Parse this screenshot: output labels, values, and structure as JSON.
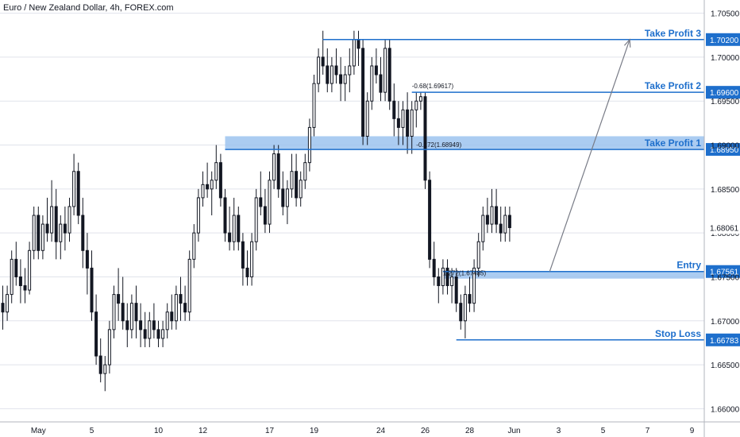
{
  "chart_data": {
    "type": "candlestick",
    "title": "Euro / New Zealand Dollar, 4h, FOREX.com",
    "current_price": "1.68061",
    "ylim": [
      1.6585,
      1.7065
    ],
    "y_ticks": [
      1.705,
      1.7,
      1.695,
      1.69,
      1.685,
      1.68,
      1.675,
      1.67,
      1.665,
      1.66
    ],
    "y_tick_labels": [
      "1.70500",
      "1.70000",
      "1.69500",
      "1.69000",
      "1.68500",
      "1.68000",
      "1.67500",
      "1.67000",
      "1.66500",
      "1.66000"
    ],
    "x_ticks": [
      {
        "label": "May",
        "bar": 8
      },
      {
        "label": "5",
        "bar": 20
      },
      {
        "label": "10",
        "bar": 35
      },
      {
        "label": "12",
        "bar": 45
      },
      {
        "label": "17",
        "bar": 60
      },
      {
        "label": "19",
        "bar": 70
      },
      {
        "label": "24",
        "bar": 85
      },
      {
        "label": "26",
        "bar": 95
      },
      {
        "label": "28",
        "bar": 105
      },
      {
        "label": "Jun",
        "bar": 115
      },
      {
        "label": "3",
        "bar": 125
      },
      {
        "label": "5",
        "bar": 135
      },
      {
        "label": "7",
        "bar": 145
      },
      {
        "label": "9",
        "bar": 155
      }
    ],
    "candles": [
      [
        1.672,
        1.674,
        1.669,
        1.671
      ],
      [
        1.671,
        1.674,
        1.67,
        1.673
      ],
      [
        1.673,
        1.678,
        1.672,
        1.677
      ],
      [
        1.677,
        1.679,
        1.674,
        1.675
      ],
      [
        1.675,
        1.677,
        1.672,
        1.674
      ],
      [
        1.674,
        1.676,
        1.672,
        1.6735
      ],
      [
        1.6735,
        1.679,
        1.673,
        1.678
      ],
      [
        1.678,
        1.683,
        1.677,
        1.682
      ],
      [
        1.682,
        1.683,
        1.677,
        1.678
      ],
      [
        1.678,
        1.682,
        1.677,
        1.681
      ],
      [
        1.681,
        1.684,
        1.679,
        1.68
      ],
      [
        1.68,
        1.686,
        1.679,
        1.683
      ],
      [
        1.683,
        1.685,
        1.677,
        1.679
      ],
      [
        1.679,
        1.682,
        1.677,
        1.681
      ],
      [
        1.681,
        1.683,
        1.678,
        1.68
      ],
      [
        1.68,
        1.684,
        1.679,
        1.683
      ],
      [
        1.683,
        1.689,
        1.682,
        1.687
      ],
      [
        1.687,
        1.688,
        1.681,
        1.682
      ],
      [
        1.682,
        1.684,
        1.676,
        1.678
      ],
      [
        1.678,
        1.68,
        1.673,
        1.676
      ],
      [
        1.676,
        1.678,
        1.67,
        1.671
      ],
      [
        1.671,
        1.673,
        1.665,
        1.666
      ],
      [
        1.666,
        1.668,
        1.663,
        1.664
      ],
      [
        1.664,
        1.666,
        1.662,
        1.665
      ],
      [
        1.665,
        1.67,
        1.664,
        1.669
      ],
      [
        1.669,
        1.674,
        1.668,
        1.673
      ],
      [
        1.673,
        1.676,
        1.67,
        1.672
      ],
      [
        1.672,
        1.675,
        1.669,
        1.67
      ],
      [
        1.67,
        1.672,
        1.667,
        1.669
      ],
      [
        1.669,
        1.673,
        1.668,
        1.672
      ],
      [
        1.672,
        1.674,
        1.668,
        1.67
      ],
      [
        1.67,
        1.672,
        1.667,
        1.669
      ],
      [
        1.669,
        1.671,
        1.667,
        1.668
      ],
      [
        1.668,
        1.671,
        1.667,
        1.67
      ],
      [
        1.67,
        1.672,
        1.668,
        1.669
      ],
      [
        1.669,
        1.67,
        1.667,
        1.668
      ],
      [
        1.668,
        1.67,
        1.667,
        1.669
      ],
      [
        1.669,
        1.672,
        1.668,
        1.671
      ],
      [
        1.671,
        1.673,
        1.669,
        1.67
      ],
      [
        1.67,
        1.674,
        1.669,
        1.673
      ],
      [
        1.673,
        1.675,
        1.67,
        1.672
      ],
      [
        1.672,
        1.674,
        1.67,
        1.671
      ],
      [
        1.671,
        1.678,
        1.67,
        1.677
      ],
      [
        1.677,
        1.681,
        1.676,
        1.68
      ],
      [
        1.68,
        1.685,
        1.679,
        1.684
      ],
      [
        1.684,
        1.687,
        1.683,
        1.6855
      ],
      [
        1.6855,
        1.688,
        1.684,
        1.685
      ],
      [
        1.685,
        1.687,
        1.682,
        1.686
      ],
      [
        1.686,
        1.69,
        1.685,
        1.688
      ],
      [
        1.688,
        1.689,
        1.683,
        1.684
      ],
      [
        1.684,
        1.685,
        1.679,
        1.68
      ],
      [
        1.68,
        1.683,
        1.678,
        1.679
      ],
      [
        1.679,
        1.684,
        1.678,
        1.682
      ],
      [
        1.682,
        1.683,
        1.678,
        1.679
      ],
      [
        1.679,
        1.68,
        1.674,
        1.676
      ],
      [
        1.676,
        1.678,
        1.674,
        1.675
      ],
      [
        1.675,
        1.68,
        1.674,
        1.679
      ],
      [
        1.679,
        1.685,
        1.678,
        1.684
      ],
      [
        1.684,
        1.687,
        1.682,
        1.683
      ],
      [
        1.683,
        1.685,
        1.68,
        1.681
      ],
      [
        1.681,
        1.687,
        1.68,
        1.686
      ],
      [
        1.686,
        1.69,
        1.685,
        1.689
      ],
      [
        1.689,
        1.69,
        1.684,
        1.685
      ],
      [
        1.685,
        1.687,
        1.682,
        1.683
      ],
      [
        1.683,
        1.686,
        1.681,
        1.685
      ],
      [
        1.685,
        1.689,
        1.684,
        1.687
      ],
      [
        1.687,
        1.689,
        1.683,
        1.684
      ],
      [
        1.684,
        1.687,
        1.683,
        1.686
      ],
      [
        1.686,
        1.689,
        1.685,
        1.688
      ],
      [
        1.688,
        1.693,
        1.687,
        1.692
      ],
      [
        1.692,
        1.698,
        1.691,
        1.697
      ],
      [
        1.697,
        1.701,
        1.696,
        1.7
      ],
      [
        1.7,
        1.703,
        1.698,
        1.699
      ],
      [
        1.699,
        1.701,
        1.696,
        1.697
      ],
      [
        1.697,
        1.7,
        1.696,
        1.699
      ],
      [
        1.699,
        1.701,
        1.697,
        1.698
      ],
      [
        1.698,
        1.7,
        1.695,
        1.697
      ],
      [
        1.697,
        1.699,
        1.695,
        1.698
      ],
      [
        1.698,
        1.701,
        1.696,
        1.699
      ],
      [
        1.699,
        1.703,
        1.698,
        1.702
      ],
      [
        1.702,
        1.703,
        1.699,
        1.701
      ],
      [
        1.701,
        1.702,
        1.69,
        1.691
      ],
      [
        1.691,
        1.696,
        1.69,
        1.695
      ],
      [
        1.695,
        1.7,
        1.694,
        1.699
      ],
      [
        1.699,
        1.701,
        1.697,
        1.698
      ],
      [
        1.698,
        1.7,
        1.695,
        1.696
      ],
      [
        1.696,
        1.702,
        1.695,
        1.701
      ],
      [
        1.701,
        1.702,
        1.694,
        1.695
      ],
      [
        1.695,
        1.697,
        1.691,
        1.693
      ],
      [
        1.693,
        1.695,
        1.69,
        1.692
      ],
      [
        1.692,
        1.695,
        1.69,
        1.694
      ],
      [
        1.694,
        1.696,
        1.689,
        1.691
      ],
      [
        1.691,
        1.695,
        1.689,
        1.694
      ],
      [
        1.694,
        1.696,
        1.692,
        1.695
      ],
      [
        1.695,
        1.696,
        1.694,
        1.6955
      ],
      [
        1.6955,
        1.696,
        1.685,
        1.686
      ],
      [
        1.686,
        1.687,
        1.676,
        1.677
      ],
      [
        1.677,
        1.679,
        1.674,
        1.675
      ],
      [
        1.675,
        1.676,
        1.672,
        1.674
      ],
      [
        1.674,
        1.677,
        1.673,
        1.676
      ],
      [
        1.676,
        1.677,
        1.673,
        1.674
      ],
      [
        1.674,
        1.676,
        1.672,
        1.675
      ],
      [
        1.675,
        1.676,
        1.671,
        1.672
      ],
      [
        1.672,
        1.673,
        1.669,
        1.67
      ],
      [
        1.67,
        1.674,
        1.668,
        1.673
      ],
      [
        1.673,
        1.675,
        1.671,
        1.672
      ],
      [
        1.672,
        1.677,
        1.671,
        1.676
      ],
      [
        1.676,
        1.68,
        1.675,
        1.679
      ],
      [
        1.679,
        1.683,
        1.678,
        1.682
      ],
      [
        1.682,
        1.684,
        1.68,
        1.681
      ],
      [
        1.681,
        1.685,
        1.68,
        1.683
      ],
      [
        1.683,
        1.685,
        1.68,
        1.681
      ],
      [
        1.681,
        1.683,
        1.679,
        1.68
      ],
      [
        1.68,
        1.683,
        1.679,
        1.682
      ],
      [
        1.682,
        1.683,
        1.679,
        1.6806
      ]
    ],
    "levels": [
      {
        "name": "Take Profit 3",
        "price": 1.702,
        "price_label": "1.70200"
      },
      {
        "name": "Take Profit 2",
        "price": 1.696,
        "price_label": "1.69600"
      },
      {
        "name": "Take Profit 1",
        "price": 1.6895,
        "price_label": "1.68950"
      },
      {
        "name": "Entry",
        "price": 1.67561,
        "price_label": "1.67561"
      },
      {
        "name": "Stop Loss",
        "price": 1.66783,
        "price_label": "1.66783"
      }
    ],
    "zones": [
      {
        "from": 1.6895,
        "to": 1.691
      },
      {
        "from": 1.6748,
        "to": 1.6756
      }
    ],
    "fib_labels": [
      {
        "text": "-0.68(1.69617)",
        "price": 1.6962
      },
      {
        "text": "-0.272(1.68949)",
        "price": 1.6895
      },
      {
        "text": "1.272(1.67485)",
        "price": 1.6749
      }
    ],
    "colors": {
      "accent": "#1e6fcc",
      "zone": "#9cc3ee",
      "candle": "#131722",
      "grid": "#e0e3eb",
      "arrow": "#787b86"
    }
  }
}
